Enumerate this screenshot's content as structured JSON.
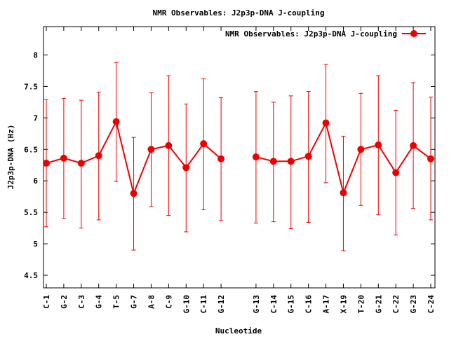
{
  "chart_data": {
    "type": "line",
    "title": "NMR Observables: J2p3p-DNA J-coupling",
    "xlabel": "Nucleotide",
    "ylabel": "J2p3p-DNA (Hz)",
    "ylim": [
      4.3,
      8.45
    ],
    "yticks": [
      4.5,
      5,
      5.5,
      6,
      6.5,
      7,
      7.5,
      8
    ],
    "ytick_labels": [
      "4.5",
      "5",
      "5.5",
      "6",
      "6.5",
      "7",
      "7.5",
      "8"
    ],
    "xlim": [
      0,
      22
    ],
    "grid": false,
    "legend_position": "top-right",
    "color": "#ee0000",
    "series": [
      {
        "name": "NMR Observables: J2p3p-DNA J-coupling",
        "segments": [
          [
            {
              "label": "C-1",
              "x": 1,
              "y": 6.28,
              "err_low": 5.27,
              "err_high": 7.29
            },
            {
              "label": "G-2",
              "x": 2,
              "y": 6.36,
              "err_low": 5.4,
              "err_high": 7.31
            },
            {
              "label": "C-3",
              "x": 3,
              "y": 6.28,
              "err_low": 5.25,
              "err_high": 7.28
            },
            {
              "label": "G-4",
              "x": 4,
              "y": 6.4,
              "err_low": 5.38,
              "err_high": 7.41
            },
            {
              "label": "T-5",
              "x": 5,
              "y": 6.94,
              "err_low": 5.99,
              "err_high": 7.88
            },
            {
              "label": "G-7",
              "x": 6,
              "y": 5.8,
              "err_low": 4.9,
              "err_high": 6.69
            },
            {
              "label": "A-8",
              "x": 7,
              "y": 6.5,
              "err_low": 5.59,
              "err_high": 7.4
            },
            {
              "label": "C-9",
              "x": 8,
              "y": 6.56,
              "err_low": 5.45,
              "err_high": 7.67
            },
            {
              "label": "G-10",
              "x": 9,
              "y": 6.21,
              "err_low": 5.19,
              "err_high": 7.22
            },
            {
              "label": "C-11",
              "x": 10,
              "y": 6.59,
              "err_low": 5.54,
              "err_high": 7.62
            },
            {
              "label": "G-12",
              "x": 11,
              "y": 6.35,
              "err_low": 5.37,
              "err_high": 7.32
            }
          ],
          [
            {
              "label": "G-13",
              "x": 13,
              "y": 6.38,
              "err_low": 5.33,
              "err_high": 7.42
            },
            {
              "label": "C-14",
              "x": 14,
              "y": 6.31,
              "err_low": 5.35,
              "err_high": 7.25
            },
            {
              "label": "G-15",
              "x": 15,
              "y": 6.31,
              "err_low": 5.24,
              "err_high": 7.35
            },
            {
              "label": "C-16",
              "x": 16,
              "y": 6.39,
              "err_low": 5.34,
              "err_high": 7.42
            },
            {
              "label": "A-17",
              "x": 17,
              "y": 6.92,
              "err_low": 5.97,
              "err_high": 7.85
            },
            {
              "label": "X-19",
              "x": 18,
              "y": 5.81,
              "err_low": 4.89,
              "err_high": 6.71
            },
            {
              "label": "T-20",
              "x": 19,
              "y": 6.5,
              "err_low": 5.61,
              "err_high": 7.39
            },
            {
              "label": "G-21",
              "x": 20,
              "y": 6.57,
              "err_low": 5.46,
              "err_high": 7.67
            },
            {
              "label": "C-22",
              "x": 21,
              "y": 6.13,
              "err_low": 5.14,
              "err_high": 7.12
            },
            {
              "label": "G-23",
              "x": 22,
              "y": 6.56,
              "err_low": 5.56,
              "err_high": 7.56
            },
            {
              "label": "C-24",
              "x": 23,
              "y": 6.35,
              "err_low": 5.38,
              "err_high": 7.33
            }
          ]
        ]
      }
    ]
  }
}
